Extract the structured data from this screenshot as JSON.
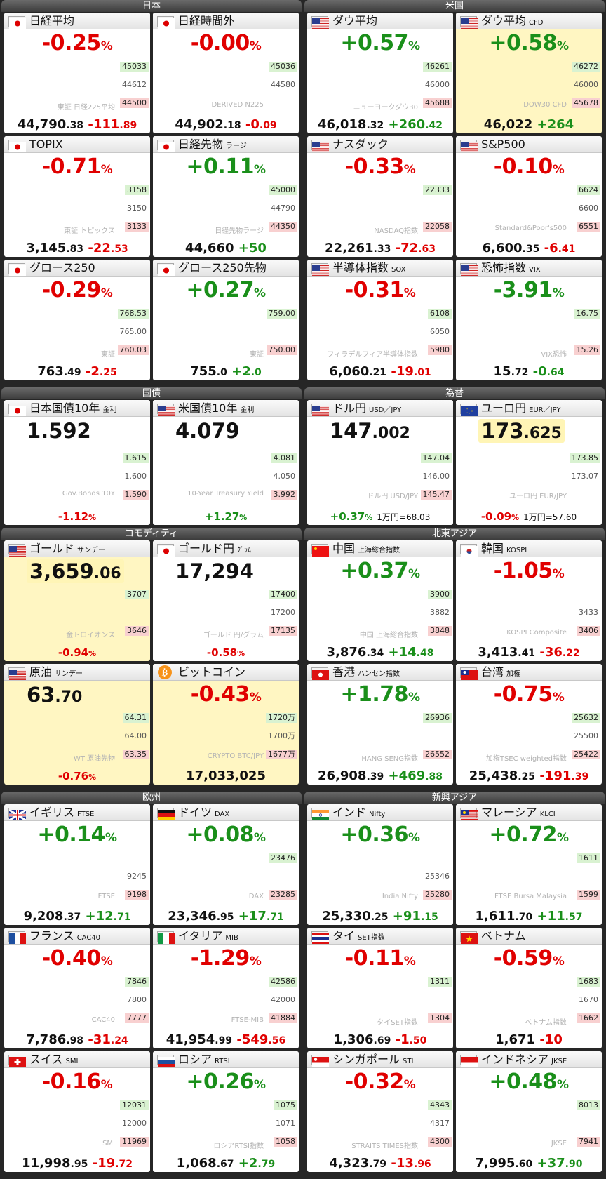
{
  "sections": [
    {
      "id": "japan",
      "title": "日本",
      "cards": [
        {
          "name": "日経平均",
          "sub": "",
          "flag": "jp",
          "pct": "-0.25",
          "value_main": "44,790",
          "value_dec": ".38",
          "chg_main": "-111",
          "chg_dec": ".89",
          "dir": "neg",
          "wm": "東証 日経225平均",
          "labels": [
            "45033",
            "44612",
            "44500"
          ],
          "spark": "wave"
        },
        {
          "name": "日経時間外",
          "sub": "",
          "flag": "jp",
          "pct": "-0.00",
          "value_main": "44,902",
          "value_dec": ".18",
          "chg_main": "-0",
          "chg_dec": ".09",
          "dir": "neg",
          "wm": "DERIVED N225",
          "labels": [
            "45036",
            "44580",
            ""
          ],
          "spark": "flat"
        },
        {
          "name": "TOPIX",
          "sub": "",
          "flag": "jp",
          "pct": "-0.71",
          "value_main": "3,145",
          "value_dec": ".83",
          "chg_main": "-22",
          "chg_dec": ".53",
          "dir": "neg",
          "wm": "東証 トピックス",
          "labels": [
            "3158",
            "3150",
            "3133"
          ],
          "spark": "down"
        },
        {
          "name": "日経先物",
          "sub": "ラージ",
          "flag": "jp",
          "pct": "+0.11",
          "value_main": "44,660",
          "value_dec": "",
          "chg_main": "+50",
          "chg_dec": "",
          "dir": "pos",
          "wm": "日経先物ラージ",
          "labels": [
            "45000",
            "44790",
            "44350"
          ],
          "spark": "wave"
        },
        {
          "name": "グロース250",
          "sub": "",
          "flag": "jp",
          "pct": "-0.29",
          "value_main": "763",
          "value_dec": ".49",
          "chg_main": "-2",
          "chg_dec": ".25",
          "dir": "neg",
          "wm": "東証",
          "labels": [
            "768.53",
            "765.00",
            "760.03"
          ],
          "spark": "wave"
        },
        {
          "name": "グロース250先物",
          "sub": "",
          "flag": "jp",
          "pct": "+0.27",
          "value_main": "755",
          "value_dec": ".0",
          "chg_main": "+2",
          "chg_dec": ".0",
          "dir": "pos",
          "wm": "東証",
          "labels": [
            "759.00",
            "",
            "750.00"
          ],
          "spark": "up"
        }
      ]
    },
    {
      "id": "us",
      "title": "米国",
      "cards": [
        {
          "name": "ダウ平均",
          "sub": "",
          "flag": "us",
          "pct": "+0.57",
          "value_main": "46,018",
          "value_dec": ".32",
          "chg_main": "+260",
          "chg_dec": ".42",
          "dir": "pos",
          "wm": "ニューヨークダウ30",
          "labels": [
            "46261",
            "46000",
            "45688"
          ],
          "spark": "up"
        },
        {
          "name": "ダウ平均",
          "sub": "CFD",
          "flag": "us",
          "pct": "+0.58",
          "value_main": "46,022",
          "value_dec": "",
          "chg_main": "+264",
          "chg_dec": "",
          "dir": "pos",
          "wm": "DOW30 CFD",
          "labels": [
            "46272",
            "46000",
            "45678"
          ],
          "spark": "up",
          "yel": true
        },
        {
          "name": "ナスダック",
          "sub": "",
          "flag": "us",
          "pct": "-0.33",
          "value_main": "22,261",
          "value_dec": ".33",
          "chg_main": "-72",
          "chg_dec": ".63",
          "dir": "neg",
          "wm": "NASDAQ指数",
          "labels": [
            "22333",
            "",
            "22058"
          ],
          "spark": "wave"
        },
        {
          "name": "S&P500",
          "sub": "",
          "flag": "us",
          "pct": "-0.10",
          "value_main": "6,600",
          "value_dec": ".35",
          "chg_main": "-6",
          "chg_dec": ".41",
          "dir": "neg",
          "wm": "Standard&Poor's500",
          "labels": [
            "6624",
            "6600",
            "6551"
          ],
          "spark": "flat"
        },
        {
          "name": "半導体指数",
          "sub": "SOX",
          "flag": "us",
          "pct": "-0.31",
          "value_main": "6,060",
          "value_dec": ".21",
          "chg_main": "-19",
          "chg_dec": ".01",
          "dir": "neg",
          "wm": "フィラデルフィア半導体指数",
          "labels": [
            "6108",
            "6050",
            "5980"
          ],
          "spark": "wave"
        },
        {
          "name": "恐怖指数",
          "sub": "VIX",
          "flag": "us",
          "pct": "-3.91",
          "value_main": "15",
          "value_dec": ".72",
          "chg_main": "-0",
          "chg_dec": ".64",
          "dir": "pos",
          "wm": "VIX恐怖",
          "labels": [
            "16.75",
            "",
            "15.26"
          ],
          "spark": "down"
        }
      ]
    },
    {
      "id": "bonds",
      "title": "国債",
      "cards": [
        {
          "name": "日本国債10年",
          "sub": "金利",
          "flag": "jp",
          "big": "1.592",
          "bigdec": "",
          "pctb": "-1.12",
          "dir": "neg",
          "wm": "Gov.Bonds 10Y",
          "labels": [
            "1.615",
            "1.600",
            "1.590"
          ],
          "spark": "down"
        },
        {
          "name": "米国債10年",
          "sub": "金利",
          "flag": "us",
          "big": "4.079",
          "bigdec": "",
          "pctb": "+1.27",
          "dir": "pos",
          "wm": "10-Year Treasury Yield",
          "labels": [
            "4.081",
            "4.050",
            "3.992"
          ],
          "spark": "up"
        }
      ]
    },
    {
      "id": "fx",
      "title": "為替",
      "cards": [
        {
          "name": "ドル円",
          "sub": "USD／JPY",
          "flag": "us",
          "big": "147",
          "bigdec": ".002",
          "pctb": "+0.37",
          "dir": "pos",
          "extra": "1万円=68.03",
          "wm": "ドル円 USD/JPY",
          "labels": [
            "147.04",
            "146.00",
            "145.47"
          ],
          "spark": "up"
        },
        {
          "name": "ユーロ円",
          "sub": "EUR／JPY",
          "flag": "eu",
          "big": "173",
          "bigdec": ".625",
          "pctb": "-0.09",
          "dir": "neg",
          "extra": "1万円=57.60",
          "wm": "ユーロ円 EUR/JPY",
          "labels": [
            "173.85",
            "173.07",
            ""
          ],
          "spark": "wave",
          "hlbig": true
        }
      ]
    },
    {
      "id": "commodity",
      "title": "コモディティ",
      "cards": [
        {
          "name": "ゴールド",
          "sub": "サンデー",
          "flag": "us",
          "big": "3,659",
          "bigdec": ".06",
          "pctb": "-0.94",
          "dir": "neg",
          "wm": "金トロイオンス",
          "labels": [
            "3707",
            "",
            "3646"
          ],
          "spark": "wave",
          "yel": true,
          "hlbig": true
        },
        {
          "name": "ゴールド円",
          "sub": "ｸﾞﾗﾑ",
          "flag": "jp",
          "big": "17,294",
          "bigdec": "",
          "pctb": "-0.58",
          "dir": "neg",
          "wm": "ゴールド 円/グラム",
          "labels": [
            "17400",
            "17200",
            "17135"
          ],
          "spark": "wave"
        },
        {
          "name": "原油",
          "sub": "サンデー",
          "flag": "us",
          "big": "63",
          "bigdec": ".70",
          "pctb": "-0.76",
          "dir": "neg",
          "wm": "WTI原油先物",
          "labels": [
            "64.31",
            "64.00",
            "63.35"
          ],
          "spark": "wave",
          "yel": true
        },
        {
          "name": "ビットコイン",
          "sub": "",
          "flag": "btc",
          "pct": "-0.43",
          "value_main": "17,033,025",
          "value_dec": "",
          "chg_main": "",
          "chg_dec": "",
          "dir": "neg",
          "wm": "CRYPTO BTC/JPY",
          "labels": [
            "1720万",
            "1700万",
            "1677万"
          ],
          "spark": "wave",
          "yel": true
        }
      ]
    },
    {
      "id": "neasia",
      "title": "北東アジア",
      "cards": [
        {
          "name": "中国",
          "sub": "上海総合指数",
          "flag": "cn",
          "pct": "+0.37",
          "value_main": "3,876",
          "value_dec": ".34",
          "chg_main": "+14",
          "chg_dec": ".48",
          "dir": "pos",
          "wm": "中国 上海総合指数",
          "labels": [
            "3900",
            "3882",
            "3848"
          ],
          "spark": "up"
        },
        {
          "name": "韓国",
          "sub": "KOSPI",
          "flag": "kr",
          "pct": "-1.05",
          "value_main": "3,413",
          "value_dec": ".41",
          "chg_main": "-36",
          "chg_dec": ".22",
          "dir": "neg",
          "wm": "KOSPI Composite",
          "labels": [
            "",
            "3433",
            "3406"
          ],
          "spark": "down"
        },
        {
          "name": "香港",
          "sub": "ハンセン指数",
          "flag": "hk",
          "pct": "+1.78",
          "value_main": "26,908",
          "value_dec": ".39",
          "chg_main": "+469",
          "chg_dec": ".88",
          "dir": "pos",
          "wm": "HANG SENG指数",
          "labels": [
            "26936",
            "",
            "26552"
          ],
          "spark": "up"
        },
        {
          "name": "台湾",
          "sub": "加権",
          "flag": "tw",
          "pct": "-0.75",
          "value_main": "25,438",
          "value_dec": ".25",
          "chg_main": "-191",
          "chg_dec": ".39",
          "dir": "neg",
          "wm": "加権TSEC weighted指数",
          "labels": [
            "25632",
            "25500",
            "25422"
          ],
          "spark": "down"
        }
      ]
    },
    {
      "id": "europe",
      "title": "欧州",
      "cards": [
        {
          "name": "イギリス",
          "sub": "FTSE",
          "flag": "gb",
          "pct": "+0.14",
          "value_main": "9,208",
          "value_dec": ".37",
          "chg_main": "+12",
          "chg_dec": ".71",
          "dir": "pos",
          "wm": "FTSE",
          "labels": [
            "",
            "9245",
            "9198"
          ],
          "spark": "flat"
        },
        {
          "name": "ドイツ",
          "sub": "DAX",
          "flag": "de",
          "pct": "+0.08",
          "value_main": "23,346",
          "value_dec": ".95",
          "chg_main": "+17",
          "chg_dec": ".71",
          "dir": "pos",
          "wm": "DAX",
          "labels": [
            "23476",
            "",
            "23285"
          ],
          "spark": "wave"
        },
        {
          "name": "フランス",
          "sub": "CAC40",
          "flag": "fr",
          "pct": "-0.40",
          "value_main": "7,786",
          "value_dec": ".98",
          "chg_main": "-31",
          "chg_dec": ".24",
          "dir": "neg",
          "wm": "CAC40",
          "labels": [
            "7846",
            "7800",
            "7777"
          ],
          "spark": "down"
        },
        {
          "name": "イタリア",
          "sub": "MIB",
          "flag": "it",
          "pct": "-1.29",
          "value_main": "41,954",
          "value_dec": ".99",
          "chg_main": "-549",
          "chg_dec": ".56",
          "dir": "neg",
          "wm": "FTSE-MIB",
          "labels": [
            "42586",
            "42000",
            "41884"
          ],
          "spark": "down"
        },
        {
          "name": "スイス",
          "sub": "SMI",
          "flag": "ch",
          "pct": "-0.16",
          "value_main": "11,998",
          "value_dec": ".95",
          "chg_main": "-19",
          "chg_dec": ".72",
          "dir": "neg",
          "wm": "SMI",
          "labels": [
            "12031",
            "12000",
            "11969"
          ],
          "spark": "flat"
        },
        {
          "name": "ロシア",
          "sub": "RTSI",
          "flag": "ru",
          "pct": "+0.26",
          "value_main": "1,068",
          "value_dec": ".67",
          "chg_main": "+2",
          "chg_dec": ".79",
          "dir": "pos",
          "wm": "ロシアRTSI指数",
          "labels": [
            "1075",
            "1071",
            "1058"
          ],
          "spark": "up"
        }
      ]
    },
    {
      "id": "emasia",
      "title": "新興アジア",
      "cards": [
        {
          "name": "インド",
          "sub": "Nifty",
          "flag": "in",
          "pct": "+0.36",
          "value_main": "25,330",
          "value_dec": ".25",
          "chg_main": "+91",
          "chg_dec": ".15",
          "dir": "pos",
          "wm": "India Nifty",
          "labels": [
            "",
            "25346",
            "25280"
          ],
          "spark": "flat"
        },
        {
          "name": "マレーシア",
          "sub": "KLCI",
          "flag": "my",
          "pct": "+0.72",
          "value_main": "1,611",
          "value_dec": ".70",
          "chg_main": "+11",
          "chg_dec": ".57",
          "dir": "pos",
          "wm": "FTSE Bursa Malaysia",
          "labels": [
            "1611",
            "",
            "1599"
          ],
          "spark": "up"
        },
        {
          "name": "タイ",
          "sub": "SET指数",
          "flag": "th",
          "pct": "-0.11",
          "value_main": "1,306",
          "value_dec": ".69",
          "chg_main": "-1",
          "chg_dec": ".50",
          "dir": "neg",
          "wm": "タイSET指数",
          "labels": [
            "1311",
            "",
            "1304"
          ],
          "spark": "flat"
        },
        {
          "name": "ベトナム",
          "sub": "",
          "flag": "vn",
          "pct": "-0.59",
          "value_main": "1,671",
          "value_dec": "",
          "chg_main": "-10",
          "chg_dec": "",
          "dir": "neg",
          "wm": "ベトナム指数",
          "labels": [
            "1683",
            "1670",
            "1662"
          ],
          "spark": "down"
        },
        {
          "name": "シンガポール",
          "sub": "STI",
          "flag": "sg",
          "pct": "-0.32",
          "value_main": "4,323",
          "value_dec": ".79",
          "chg_main": "-13",
          "chg_dec": ".96",
          "dir": "neg",
          "wm": "STRAITS TIMES指数",
          "labels": [
            "4343",
            "4317",
            "4300"
          ],
          "spark": "down"
        },
        {
          "name": "インドネシア",
          "sub": "JKSE",
          "flag": "id",
          "pct": "+0.48",
          "value_main": "7,995",
          "value_dec": ".60",
          "chg_main": "+37",
          "chg_dec": ".90",
          "dir": "pos",
          "wm": "JKSE",
          "labels": [
            "8013",
            "",
            "7941"
          ],
          "spark": "up"
        }
      ]
    }
  ]
}
